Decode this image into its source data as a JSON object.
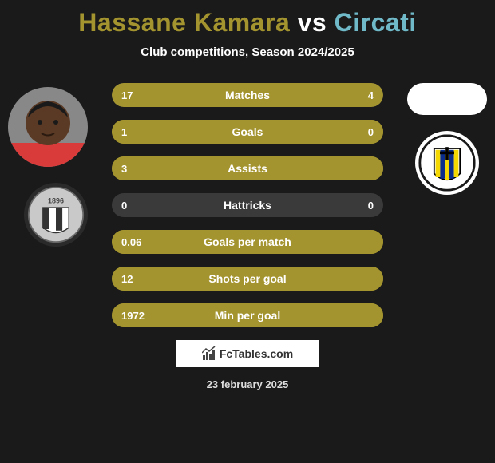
{
  "title": {
    "player1": "Hassane Kamara",
    "vs": "vs",
    "player2": "Circati",
    "color_player1": "#a4942f",
    "color_vs": "#ffffff",
    "color_player2": "#6fb9c9"
  },
  "subtitle": "Club competitions, Season 2024/2025",
  "bars": [
    {
      "label": "Matches",
      "left": "17",
      "right": "4",
      "left_pct": 80,
      "right_pct": 28,
      "left_color": "#a4942f",
      "right_color": "#a4942f",
      "bg": "#3a3a3a"
    },
    {
      "label": "Goals",
      "left": "1",
      "right": "0",
      "left_pct": 100,
      "right_pct": 0,
      "left_color": "#a4942f",
      "right_color": "#a4942f",
      "bg": "#a4942f"
    },
    {
      "label": "Assists",
      "left": "3",
      "right": "",
      "left_pct": 100,
      "right_pct": 0,
      "left_color": "#a4942f",
      "right_color": "#a4942f",
      "bg": "#a4942f"
    },
    {
      "label": "Hattricks",
      "left": "0",
      "right": "0",
      "left_pct": 0,
      "right_pct": 0,
      "left_color": "#a4942f",
      "right_color": "#a4942f",
      "bg": "#3a3a3a"
    },
    {
      "label": "Goals per match",
      "left": "0.06",
      "right": "",
      "left_pct": 100,
      "right_pct": 0,
      "left_color": "#a4942f",
      "right_color": "#a4942f",
      "bg": "#a4942f"
    },
    {
      "label": "Shots per goal",
      "left": "12",
      "right": "",
      "left_pct": 100,
      "right_pct": 0,
      "left_color": "#a4942f",
      "right_color": "#a4942f",
      "bg": "#a4942f"
    },
    {
      "label": "Min per goal",
      "left": "1972",
      "right": "",
      "left_pct": 100,
      "right_pct": 0,
      "left_color": "#a4942f",
      "right_color": "#a4942f",
      "bg": "#a4942f"
    }
  ],
  "footer_brand": "FcTables.com",
  "footer_date": "23 february 2025",
  "crest_left": {
    "bg": "#c9c9c9",
    "text": "1896",
    "stripe_colors": [
      "#333333",
      "#ffffff"
    ]
  },
  "crest_right": {
    "bg": "#ffffff",
    "stripe_colors": [
      "#f5d800",
      "#0a2c8a",
      "#f5d800",
      "#0a2c8a",
      "#f5d800"
    ],
    "cross_color": "#000000"
  },
  "avatar_left": {
    "skin": "#5a3a24",
    "shirt": "#d93b3b",
    "hair": "#1a1a1a"
  }
}
